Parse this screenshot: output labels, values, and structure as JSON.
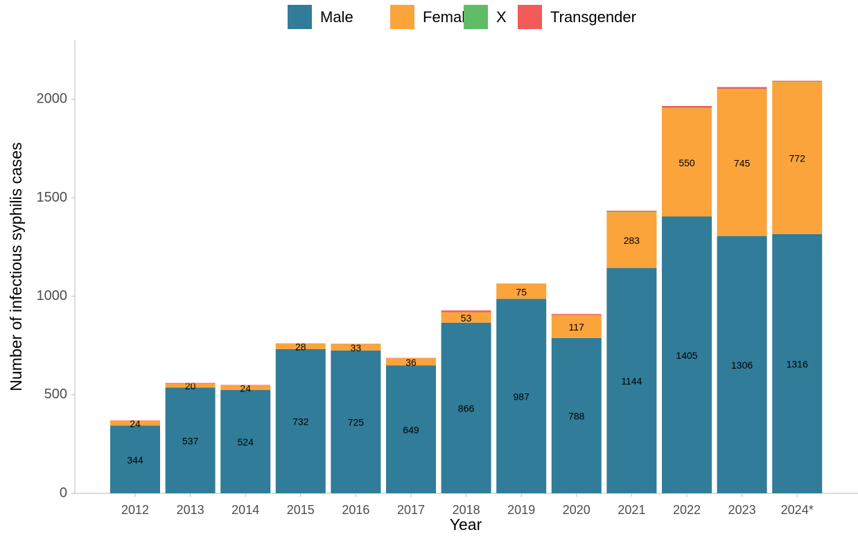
{
  "chart_data": {
    "type": "bar",
    "stacked": true,
    "x_label": "Year",
    "y_label": "Number of infectious syphilis cases",
    "categories": [
      "2012",
      "2013",
      "2014",
      "2015",
      "2016",
      "2017",
      "2018",
      "2019",
      "2020",
      "2021",
      "2022",
      "2023",
      "2024*"
    ],
    "series": [
      {
        "name": "Male",
        "color": "#317c99",
        "values": [
          344,
          537,
          524,
          732,
          725,
          649,
          866,
          987,
          788,
          1144,
          1405,
          1306,
          1316
        ]
      },
      {
        "name": "Female",
        "color": "#fba43b",
        "values": [
          24,
          20,
          24,
          28,
          33,
          36,
          53,
          75,
          117,
          283,
          550,
          745,
          772
        ]
      },
      {
        "name": "X",
        "color": "#5ebd66",
        "values": [
          0,
          0,
          0,
          0,
          0,
          0,
          0,
          0,
          0,
          1,
          3,
          2,
          3
        ]
      },
      {
        "name": "Transgender",
        "color": "#f25b57",
        "values": [
          2,
          3,
          2,
          1,
          1,
          2,
          9,
          2,
          5,
          6,
          8,
          9,
          3
        ]
      }
    ],
    "labeled_series": [
      "Male",
      "Female"
    ],
    "ylim": [
      0,
      2300
    ],
    "yticks": [
      0,
      500,
      1000,
      1500,
      2000
    ],
    "grid": false,
    "legend": "top"
  }
}
